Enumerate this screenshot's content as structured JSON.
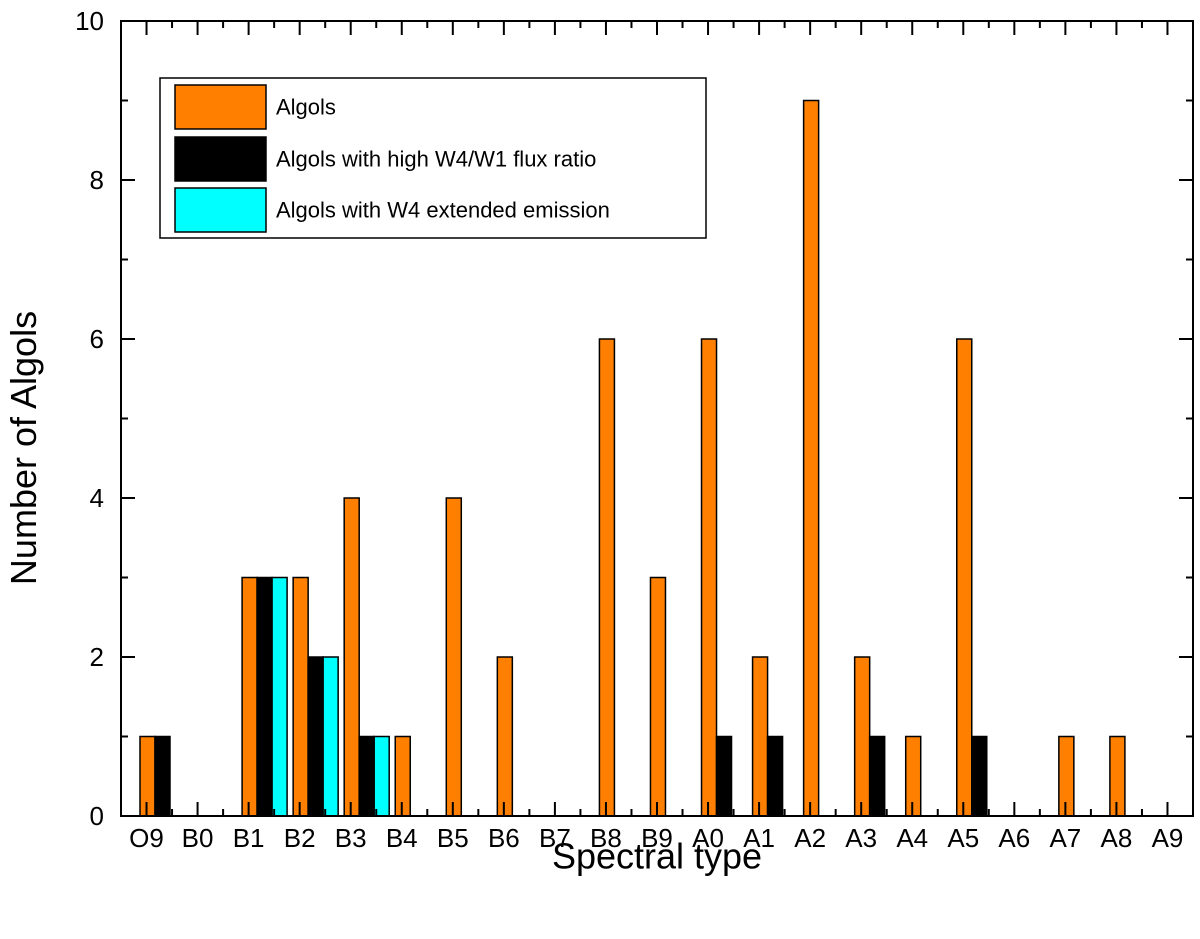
{
  "chart_data": {
    "type": "bar",
    "title": "",
    "xlabel": "Spectral type",
    "ylabel": "Number of Algols",
    "ylim": [
      0,
      10
    ],
    "yticks": [
      0,
      2,
      4,
      6,
      8,
      10
    ],
    "categories": [
      "O9",
      "B0",
      "B1",
      "B2",
      "B3",
      "B4",
      "B5",
      "B6",
      "B7",
      "B8",
      "B9",
      "A0",
      "A1",
      "A2",
      "A3",
      "A4",
      "A5",
      "A6",
      "A7",
      "A8",
      "A9"
    ],
    "series": [
      {
        "name": "Algols",
        "color": "#FF8000",
        "values": [
          1,
          0,
          3,
          3,
          4,
          1,
          4,
          2,
          0,
          6,
          3,
          6,
          2,
          9,
          2,
          1,
          6,
          0,
          1,
          1,
          0
        ]
      },
      {
        "name": "Algols with high W4/W1 flux ratio",
        "color": "#000000",
        "values": [
          1,
          0,
          3,
          2,
          1,
          0,
          0,
          0,
          0,
          0,
          0,
          1,
          1,
          0,
          1,
          0,
          1,
          0,
          0,
          0,
          0
        ]
      },
      {
        "name": "Algols with W4 extended emission",
        "color": "#00FFFF",
        "values": [
          0,
          0,
          3,
          2,
          1,
          0,
          0,
          0,
          0,
          0,
          0,
          0,
          0,
          0,
          0,
          0,
          0,
          0,
          0,
          0,
          0
        ]
      }
    ],
    "legend_position": "top-left"
  }
}
